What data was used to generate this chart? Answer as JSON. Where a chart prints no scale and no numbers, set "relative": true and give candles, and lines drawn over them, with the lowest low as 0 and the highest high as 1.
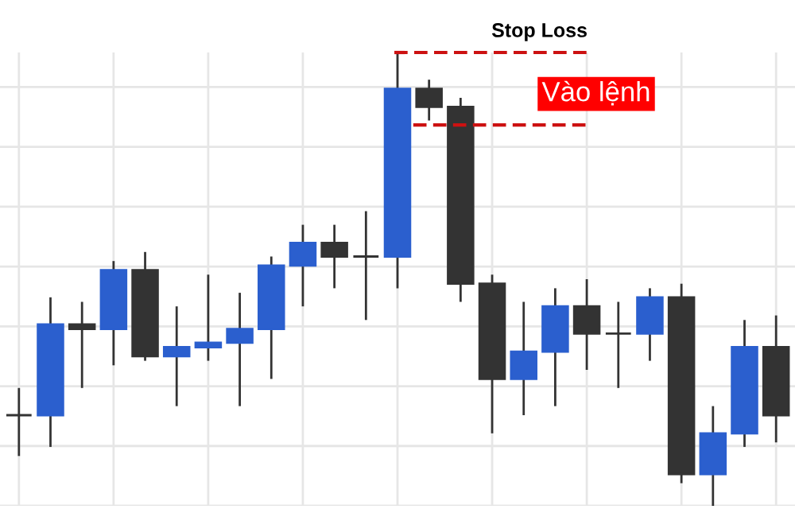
{
  "chart_data": {
    "type": "candlestick",
    "relative": true,
    "grid": true,
    "tick_labels": false,
    "categories": [
      null,
      null,
      null,
      null,
      null,
      null,
      null,
      null,
      null,
      null,
      null,
      null,
      null,
      null,
      null,
      null,
      null,
      null,
      null,
      null,
      null,
      null,
      null,
      null,
      null
    ],
    "ohlc": [
      [
        0.2,
        0.26,
        0.11,
        0.2
      ],
      [
        0.2,
        0.46,
        0.13,
        0.4
      ],
      [
        0.4,
        0.45,
        0.26,
        0.39
      ],
      [
        0.39,
        0.54,
        0.31,
        0.52
      ],
      [
        0.52,
        0.56,
        0.32,
        0.33
      ],
      [
        0.33,
        0.44,
        0.22,
        0.35
      ],
      [
        0.35,
        0.51,
        0.32,
        0.36
      ],
      [
        0.36,
        0.47,
        0.22,
        0.39
      ],
      [
        0.39,
        0.55,
        0.28,
        0.53
      ],
      [
        0.53,
        0.62,
        0.44,
        0.58
      ],
      [
        0.58,
        0.62,
        0.48,
        0.55
      ],
      [
        0.55,
        0.65,
        0.41,
        0.55
      ],
      [
        0.55,
        1.0,
        0.48,
        0.92
      ],
      [
        0.92,
        0.94,
        0.85,
        0.88
      ],
      [
        0.88,
        0.9,
        0.45,
        0.49
      ],
      [
        0.49,
        0.51,
        0.16,
        0.28
      ],
      [
        0.28,
        0.45,
        0.2,
        0.34
      ],
      [
        0.34,
        0.48,
        0.22,
        0.44
      ],
      [
        0.44,
        0.5,
        0.3,
        0.38
      ],
      [
        0.38,
        0.45,
        0.26,
        0.38
      ],
      [
        0.38,
        0.48,
        0.32,
        0.46
      ],
      [
        0.46,
        0.49,
        0.05,
        0.07
      ],
      [
        0.07,
        0.22,
        0.0,
        0.16
      ],
      [
        0.16,
        0.41,
        0.13,
        0.35
      ],
      [
        0.35,
        0.42,
        0.14,
        0.2
      ]
    ],
    "colors": [
      "#333333",
      "#2b5fce",
      "#333333",
      "#2b5fce",
      "#333333",
      "#2b5fce",
      "#2b5fce",
      "#2b5fce",
      "#2b5fce",
      "#2b5fce",
      "#333333",
      "#333333",
      "#2b5fce",
      "#333333",
      "#333333",
      "#333333",
      "#2b5fce",
      "#2b5fce",
      "#333333",
      "#333333",
      "#2b5fce",
      "#333333",
      "#2b5fce",
      "#2b5fce",
      "#333333"
    ],
    "ref_lines": [
      {
        "axis": "y",
        "value": 1.0,
        "label": "Stop Loss",
        "color": "#cc1111",
        "line_style": "dashed"
      },
      {
        "axis": "y",
        "value": 0.84,
        "label": "Vào lệnh",
        "color": "#cc1111",
        "line_style": "dashed"
      }
    ]
  }
}
